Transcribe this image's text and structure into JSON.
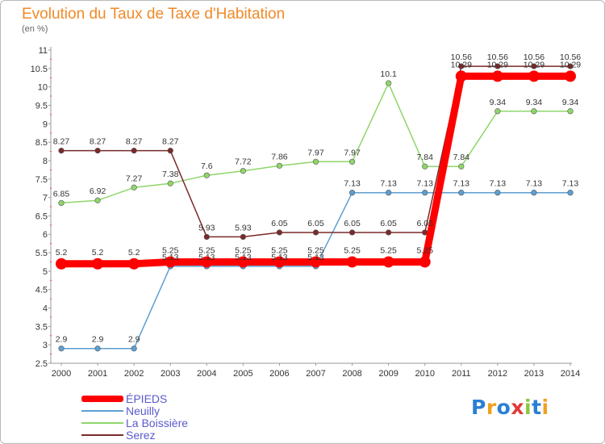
{
  "chart_data": {
    "type": "line",
    "title": "Evolution du Taux de Taxe d'Habitation",
    "subtitle": "(en %)",
    "x": [
      "2000",
      "2001",
      "2002",
      "2003",
      "2004",
      "2005",
      "2006",
      "2007",
      "2008",
      "2009",
      "2010",
      "2011",
      "2012",
      "2013",
      "2014"
    ],
    "ylim": [
      2.5,
      11
    ],
    "yticks": [
      "2.5",
      "3",
      "3.5",
      "4",
      "4.5",
      "5",
      "5.5",
      "6",
      "6.5",
      "7",
      "7.5",
      "8",
      "8.5",
      "9",
      "9.5",
      "10",
      "10.5",
      "11"
    ],
    "grid": false,
    "legend_position": "bottom-left",
    "series": [
      {
        "name": "ÉPIEDS",
        "color": "#ff0000",
        "values": [
          5.2,
          5.2,
          5.2,
          5.25,
          5.25,
          5.25,
          5.25,
          5.25,
          5.25,
          5.25,
          5.25,
          10.29,
          10.29,
          10.29,
          10.29
        ],
        "labels": [
          "5.2",
          "5.2",
          "5.2",
          "5.25",
          "5.25",
          "5.25",
          "5.25",
          "5.25",
          "5.25",
          "5.25",
          "5.25",
          "10.29",
          "10.29",
          "10.29",
          "10.29"
        ]
      },
      {
        "name": "Neuilly",
        "color": "#5e9fd1",
        "values": [
          2.9,
          2.9,
          2.9,
          5.13,
          5.13,
          5.13,
          5.13,
          5.13,
          7.13,
          7.13,
          7.13,
          7.13,
          7.13,
          7.13,
          7.13
        ],
        "labels": [
          "2.9",
          "2.9",
          "2.9",
          "5.13",
          "5.13",
          "5.13",
          "5.13",
          "5.13",
          "7.13",
          "7.13",
          "7.13",
          "7.13",
          "7.13",
          "7.13",
          "7.13"
        ]
      },
      {
        "name": "La Boissière",
        "color": "#8fd66a",
        "values": [
          6.85,
          6.92,
          7.27,
          7.38,
          7.6,
          7.72,
          7.86,
          7.97,
          7.97,
          10.1,
          7.84,
          7.84,
          9.34,
          9.34,
          9.34
        ],
        "labels": [
          "6.85",
          "6.92",
          "7.27",
          "7.38",
          "7.6",
          "7.72",
          "7.86",
          "7.97",
          "7.97",
          "10.1",
          "7.84",
          "7.84",
          "9.34",
          "9.34",
          "9.34"
        ]
      },
      {
        "name": "Serez",
        "color": "#7a2a2a",
        "values": [
          8.27,
          8.27,
          8.27,
          8.27,
          5.93,
          5.93,
          6.05,
          6.05,
          6.05,
          6.05,
          6.05,
          10.56,
          10.56,
          10.56,
          10.56
        ],
        "labels": [
          "8.27",
          "8.27",
          "8.27",
          "8.27",
          "5.93",
          "5.93",
          "6.05",
          "6.05",
          "6.05",
          "6.05",
          "6.05",
          "10.56",
          "10.56",
          "10.56",
          "10.56"
        ]
      }
    ],
    "logo_text": "Proxiti"
  }
}
